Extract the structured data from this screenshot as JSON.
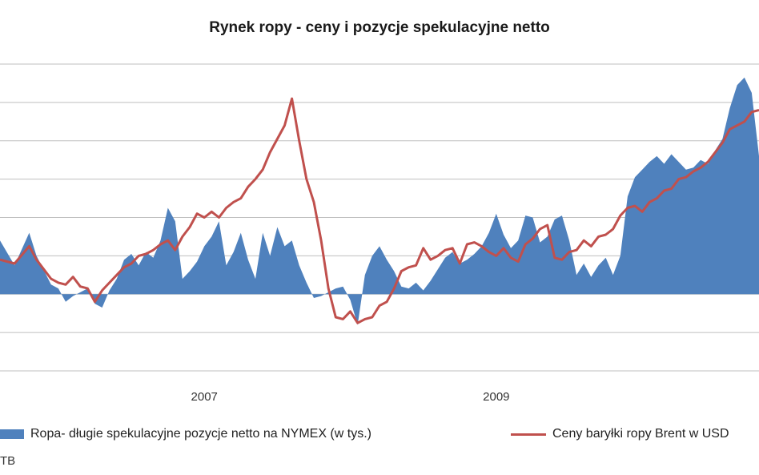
{
  "title": "Rynek ropy - ceny i pozycje spekulacyjne netto",
  "source": "TB",
  "colors": {
    "area": "#4f81bd",
    "line": "#c0504d",
    "grid": "#bfbfbf"
  },
  "chart_data": {
    "type": "line",
    "title": "Rynek ropy - ceny i pozycje spekulacyjne netto",
    "x_tick_labels": [
      "2007",
      "2009"
    ],
    "x_tick_positions": [
      2007.0,
      2009.0
    ],
    "xlim": [
      2005.6,
      2010.8
    ],
    "ylim": [
      -4,
      12
    ],
    "grid": true,
    "legend_position": "bottom",
    "series": [
      {
        "name": "Ropa- długie spekulacyjne pozycje netto na NYMEX (w tys.)",
        "type": "area",
        "x": [
          2005.6,
          2005.7,
          2005.8,
          2005.85,
          2005.95,
          2006.0,
          2006.05,
          2006.1,
          2006.15,
          2006.2,
          2006.25,
          2006.3,
          2006.35,
          2006.4,
          2006.45,
          2006.5,
          2006.55,
          2006.6,
          2006.65,
          2006.7,
          2006.75,
          2006.8,
          2006.85,
          2006.9,
          2006.95,
          2007.0,
          2007.05,
          2007.1,
          2007.15,
          2007.2,
          2007.25,
          2007.3,
          2007.35,
          2007.4,
          2007.45,
          2007.5,
          2007.55,
          2007.6,
          2007.65,
          2007.7,
          2007.75,
          2007.8,
          2007.85,
          2007.9,
          2007.95,
          2008.0,
          2008.05,
          2008.1,
          2008.15,
          2008.2,
          2008.25,
          2008.3,
          2008.35,
          2008.4,
          2008.45,
          2008.5,
          2008.55,
          2008.6,
          2008.65,
          2008.7,
          2008.75,
          2008.8,
          2008.85,
          2008.9,
          2008.95,
          2009.0,
          2009.05,
          2009.1,
          2009.15,
          2009.2,
          2009.25,
          2009.3,
          2009.35,
          2009.4,
          2009.45,
          2009.5,
          2009.55,
          2009.6,
          2009.65,
          2009.7,
          2009.75,
          2009.8,
          2009.85,
          2009.9,
          2009.95,
          2010.0,
          2010.05,
          2010.1,
          2010.15,
          2010.2,
          2010.25,
          2010.3,
          2010.35,
          2010.4,
          2010.45,
          2010.5,
          2010.55,
          2010.6,
          2010.65,
          2010.7,
          2010.75,
          2010.8
        ],
        "values": [
          2.8,
          1.5,
          3.2,
          2.0,
          0.5,
          0.3,
          -0.4,
          -0.1,
          0.1,
          0.3,
          -0.5,
          -0.7,
          0.2,
          0.8,
          1.8,
          2.1,
          1.5,
          2.2,
          1.9,
          2.8,
          4.5,
          3.8,
          0.8,
          1.2,
          1.7,
          2.5,
          3.0,
          3.8,
          1.5,
          2.2,
          3.2,
          1.8,
          0.8,
          3.2,
          2.0,
          3.5,
          2.5,
          2.8,
          1.5,
          0.6,
          -0.2,
          -0.1,
          0.1,
          0.3,
          0.4,
          -0.3,
          -1.6,
          1.0,
          2.0,
          2.5,
          1.8,
          1.2,
          0.4,
          0.3,
          0.6,
          0.2,
          0.7,
          1.3,
          1.9,
          2.2,
          1.6,
          1.8,
          2.1,
          2.5,
          3.2,
          4.2,
          3.1,
          2.4,
          2.8,
          4.1,
          4.0,
          2.7,
          3.0,
          3.9,
          4.1,
          2.8,
          1.0,
          1.6,
          0.9,
          1.5,
          1.9,
          1.0,
          2.0,
          5.1,
          6.1,
          6.5,
          6.9,
          7.2,
          6.8,
          7.3,
          6.9,
          6.5,
          6.6,
          7.0,
          6.8,
          7.5,
          8.1,
          9.7,
          10.9,
          11.3,
          10.5,
          7.2
        ]
      },
      {
        "name": "Ceny baryłki ropy Brent w USD",
        "type": "line",
        "x": [
          2005.6,
          2005.7,
          2005.8,
          2005.85,
          2005.95,
          2006.0,
          2006.05,
          2006.1,
          2006.15,
          2006.2,
          2006.25,
          2006.3,
          2006.35,
          2006.4,
          2006.45,
          2006.5,
          2006.55,
          2006.6,
          2006.65,
          2006.7,
          2006.75,
          2006.8,
          2006.85,
          2006.9,
          2006.95,
          2007.0,
          2007.05,
          2007.1,
          2007.15,
          2007.2,
          2007.25,
          2007.3,
          2007.35,
          2007.4,
          2007.45,
          2007.5,
          2007.55,
          2007.6,
          2007.65,
          2007.7,
          2007.75,
          2007.8,
          2007.85,
          2007.9,
          2007.95,
          2008.0,
          2008.05,
          2008.1,
          2008.15,
          2008.2,
          2008.25,
          2008.3,
          2008.35,
          2008.4,
          2008.45,
          2008.5,
          2008.55,
          2008.6,
          2008.65,
          2008.7,
          2008.75,
          2008.8,
          2008.85,
          2008.9,
          2008.95,
          2009.0,
          2009.05,
          2009.1,
          2009.15,
          2009.2,
          2009.25,
          2009.3,
          2009.35,
          2009.4,
          2009.45,
          2009.5,
          2009.55,
          2009.6,
          2009.65,
          2009.7,
          2009.75,
          2009.8,
          2009.85,
          2009.9,
          2009.95,
          2010.0,
          2010.05,
          2010.1,
          2010.15,
          2010.2,
          2010.25,
          2010.3,
          2010.35,
          2010.4,
          2010.45,
          2010.5,
          2010.55,
          2010.6,
          2010.65,
          2010.7,
          2010.75,
          2010.8
        ],
        "values": [
          1.8,
          1.6,
          2.5,
          1.8,
          0.8,
          0.6,
          0.5,
          0.9,
          0.4,
          0.3,
          -0.4,
          0.2,
          0.6,
          1.0,
          1.4,
          1.6,
          2.0,
          2.1,
          2.3,
          2.6,
          2.8,
          2.3,
          3.0,
          3.5,
          4.2,
          4.0,
          4.3,
          4.0,
          4.5,
          4.8,
          5.0,
          5.6,
          6.0,
          6.5,
          7.4,
          8.1,
          8.8,
          10.2,
          8.0,
          6.0,
          4.8,
          2.8,
          0.3,
          -1.2,
          -1.3,
          -0.9,
          -1.5,
          -1.3,
          -1.2,
          -0.6,
          -0.4,
          0.3,
          1.2,
          1.4,
          1.5,
          2.4,
          1.8,
          2.0,
          2.3,
          2.4,
          1.6,
          2.6,
          2.7,
          2.5,
          2.2,
          2.0,
          2.4,
          1.9,
          1.7,
          2.6,
          2.9,
          3.4,
          3.6,
          1.9,
          1.8,
          2.2,
          2.3,
          2.8,
          2.5,
          3.0,
          3.1,
          3.4,
          4.1,
          4.5,
          4.6,
          4.3,
          4.8,
          5.0,
          5.4,
          5.5,
          6.0,
          6.1,
          6.4,
          6.6,
          6.9,
          7.4,
          7.9,
          8.6,
          8.8,
          9.0,
          9.5,
          9.6
        ]
      }
    ]
  }
}
